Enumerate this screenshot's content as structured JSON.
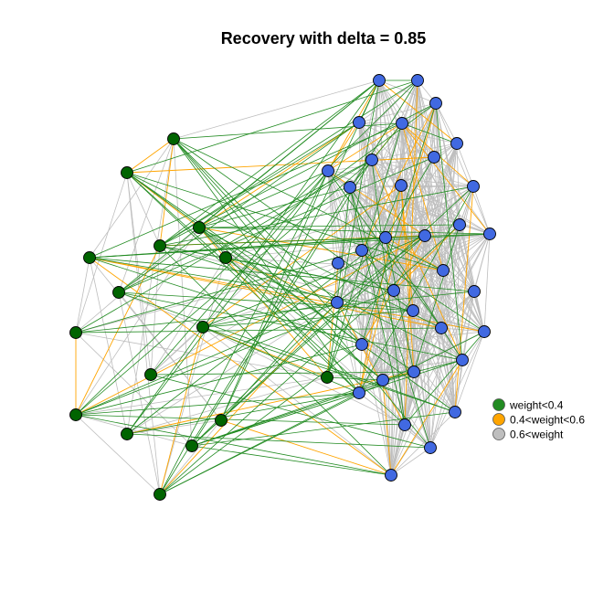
{
  "title": "Recovery with delta = 0.85",
  "legend": [
    {
      "label": "weight<0.4",
      "color": "#228B22"
    },
    {
      "label": "0.4<weight<0.6",
      "color": "#FFA500"
    },
    {
      "label": "0.6<weight",
      "color": "#BEBEBE"
    }
  ],
  "colors": {
    "group_a_node": "#006400",
    "group_b_node": "#4169E1",
    "node_stroke": "#000000"
  },
  "graph": {
    "nodes": [
      {
        "id": "a1",
        "group": "A"
      },
      {
        "id": "a2",
        "group": "A"
      },
      {
        "id": "a3",
        "group": "A"
      },
      {
        "id": "a4",
        "group": "A"
      },
      {
        "id": "a5",
        "group": "A"
      },
      {
        "id": "a6",
        "group": "A"
      },
      {
        "id": "a7",
        "group": "A"
      },
      {
        "id": "a8",
        "group": "A"
      },
      {
        "id": "a9",
        "group": "A"
      },
      {
        "id": "a10",
        "group": "A"
      },
      {
        "id": "a11",
        "group": "A"
      },
      {
        "id": "a12",
        "group": "A"
      },
      {
        "id": "a13",
        "group": "A"
      },
      {
        "id": "a14",
        "group": "A"
      },
      {
        "id": "a15",
        "group": "A"
      },
      {
        "id": "a16",
        "group": "A"
      },
      {
        "id": "b1",
        "group": "B"
      },
      {
        "id": "b2",
        "group": "B"
      },
      {
        "id": "b3",
        "group": "B"
      },
      {
        "id": "b4",
        "group": "B"
      },
      {
        "id": "b5",
        "group": "B"
      },
      {
        "id": "b6",
        "group": "B"
      },
      {
        "id": "b7",
        "group": "B"
      },
      {
        "id": "b8",
        "group": "B"
      },
      {
        "id": "b9",
        "group": "B"
      },
      {
        "id": "b10",
        "group": "B"
      },
      {
        "id": "b11",
        "group": "B"
      },
      {
        "id": "b12",
        "group": "B"
      },
      {
        "id": "b13",
        "group": "B"
      },
      {
        "id": "b14",
        "group": "B"
      },
      {
        "id": "b15",
        "group": "B"
      },
      {
        "id": "b16",
        "group": "B"
      },
      {
        "id": "b17",
        "group": "B"
      },
      {
        "id": "b18",
        "group": "B"
      },
      {
        "id": "b19",
        "group": "B"
      },
      {
        "id": "b20",
        "group": "B"
      },
      {
        "id": "b21",
        "group": "B"
      },
      {
        "id": "b22",
        "group": "B"
      },
      {
        "id": "b23",
        "group": "B"
      },
      {
        "id": "b24",
        "group": "B"
      },
      {
        "id": "b25",
        "group": "B"
      },
      {
        "id": "b26",
        "group": "B"
      },
      {
        "id": "b27",
        "group": "B"
      },
      {
        "id": "b28",
        "group": "B"
      },
      {
        "id": "b29",
        "group": "B"
      },
      {
        "id": "b30",
        "group": "B"
      },
      {
        "id": "b31",
        "group": "B"
      },
      {
        "id": "b32",
        "group": "B"
      },
      {
        "id": "b33",
        "group": "B"
      },
      {
        "id": "b34",
        "group": "B"
      }
    ]
  }
}
